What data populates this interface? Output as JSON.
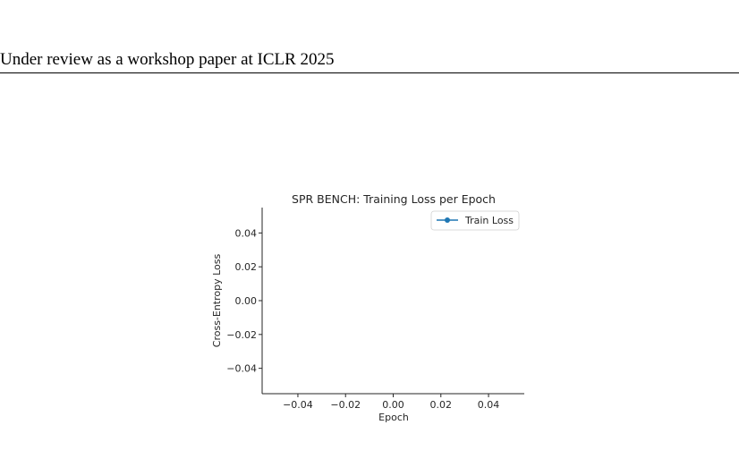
{
  "page": {
    "header_text": "Under review as a workshop paper at ICLR 2025"
  },
  "chart_data": {
    "type": "line",
    "title": "SPR BENCH: Training Loss per Epoch",
    "xlabel": "Epoch",
    "ylabel": "Cross-Entropy Loss",
    "xlim": [
      -0.055,
      0.055
    ],
    "ylim": [
      -0.055,
      0.055
    ],
    "x_ticks": [
      -0.04,
      -0.02,
      0.0,
      0.02,
      0.04
    ],
    "x_tick_labels": [
      "−0.04",
      "−0.02",
      "0.00",
      "0.02",
      "0.04"
    ],
    "y_ticks": [
      0.04,
      0.02,
      0.0,
      -0.02,
      -0.04
    ],
    "y_tick_labels": [
      "0.04",
      "0.02",
      "0.00",
      "−0.02",
      "−0.04"
    ],
    "grid": false,
    "legend_position": "top-right",
    "series": [
      {
        "name": "Train Loss",
        "x": [],
        "y": [],
        "color": "#1f77b4",
        "marker": "circle"
      }
    ]
  }
}
